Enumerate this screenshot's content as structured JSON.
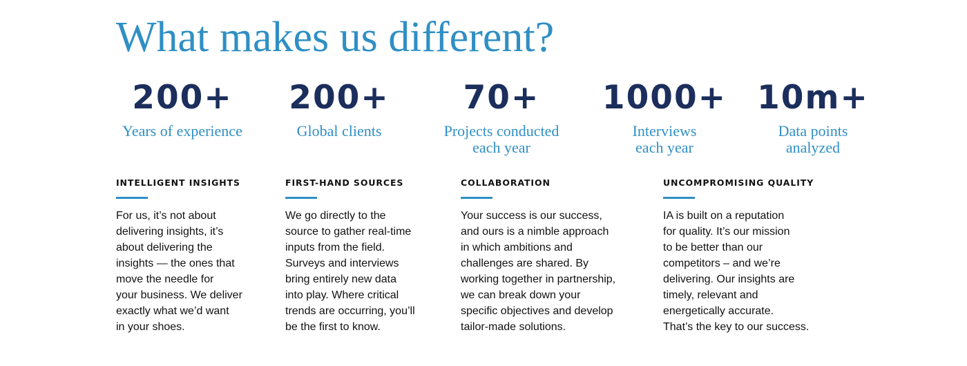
{
  "title": "What makes us different?",
  "stats": [
    {
      "value": "200+",
      "label": "Years of experience"
    },
    {
      "value": "200+",
      "label": "Global clients"
    },
    {
      "value": "70+",
      "label": "Projects conducted\neach year"
    },
    {
      "value": "1000+",
      "label": "Interviews\neach year"
    },
    {
      "value": "10m+",
      "label": "Data points\nanalyzed"
    }
  ],
  "pillars": [
    {
      "heading": "INTELLIGENT INSIGHTS",
      "body": "For us, it’s not about\ndelivering insights, it’s\nabout delivering the\ninsights — the ones that\nmove the needle for\nyour business. We deliver\nexactly what we’d want\nin your shoes."
    },
    {
      "heading": "FIRST-HAND SOURCES",
      "body": "We go directly to the\nsource to gather real-time\ninputs from the field.\nSurveys and interviews\nbring entirely new data\ninto play. Where critical\ntrends are occurring, you’ll\nbe the first to know."
    },
    {
      "heading": "COLLABORATION",
      "body": "Your success is our success,\nand ours is a nimble approach\nin which ambitions and\nchallenges are shared. By\nworking together in partnership,\nwe can break down your\nspecific objectives and develop\ntailor-made solutions."
    },
    {
      "heading": "UNCOMPROMISING QUALITY",
      "body": "IA is built on a reputation\nfor quality. It’s our mission\nto be better than our\ncompetitors – and we’re\ndelivering. Our insights are\ntimely, relevant and\nenergetically accurate.\nThat’s the key to our success."
    }
  ],
  "colors": {
    "accent": "#2f8fc4",
    "stat_value": "#1b2e5c",
    "text": "#111111"
  }
}
